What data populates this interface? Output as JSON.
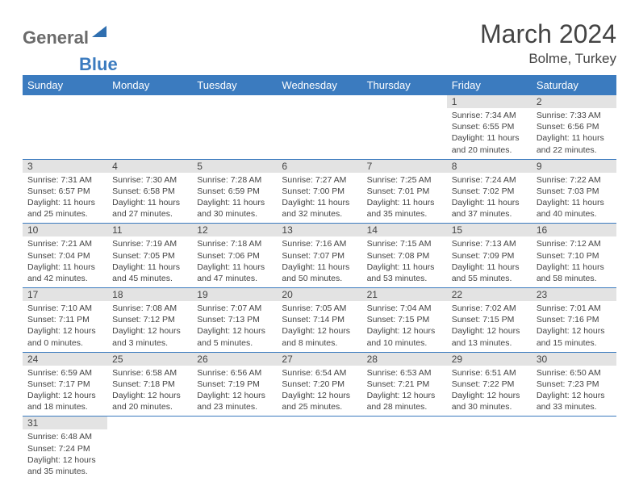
{
  "logo": {
    "text1": "General",
    "text2": "Blue"
  },
  "title": "March 2024",
  "location": "Bolme, Turkey",
  "colors": {
    "header_bg": "#3b7bbf",
    "header_fg": "#ffffff",
    "day_stripe": "#e3e3e3",
    "border": "#3b7bbf",
    "text": "#444444"
  },
  "weekdays": [
    "Sunday",
    "Monday",
    "Tuesday",
    "Wednesday",
    "Thursday",
    "Friday",
    "Saturday"
  ],
  "weeks": [
    [
      {
        "empty": true
      },
      {
        "empty": true
      },
      {
        "empty": true
      },
      {
        "empty": true
      },
      {
        "empty": true
      },
      {
        "day": "1",
        "l1": "Sunrise: 7:34 AM",
        "l2": "Sunset: 6:55 PM",
        "l3": "Daylight: 11 hours",
        "l4": "and 20 minutes."
      },
      {
        "day": "2",
        "l1": "Sunrise: 7:33 AM",
        "l2": "Sunset: 6:56 PM",
        "l3": "Daylight: 11 hours",
        "l4": "and 22 minutes."
      }
    ],
    [
      {
        "day": "3",
        "l1": "Sunrise: 7:31 AM",
        "l2": "Sunset: 6:57 PM",
        "l3": "Daylight: 11 hours",
        "l4": "and 25 minutes."
      },
      {
        "day": "4",
        "l1": "Sunrise: 7:30 AM",
        "l2": "Sunset: 6:58 PM",
        "l3": "Daylight: 11 hours",
        "l4": "and 27 minutes."
      },
      {
        "day": "5",
        "l1": "Sunrise: 7:28 AM",
        "l2": "Sunset: 6:59 PM",
        "l3": "Daylight: 11 hours",
        "l4": "and 30 minutes."
      },
      {
        "day": "6",
        "l1": "Sunrise: 7:27 AM",
        "l2": "Sunset: 7:00 PM",
        "l3": "Daylight: 11 hours",
        "l4": "and 32 minutes."
      },
      {
        "day": "7",
        "l1": "Sunrise: 7:25 AM",
        "l2": "Sunset: 7:01 PM",
        "l3": "Daylight: 11 hours",
        "l4": "and 35 minutes."
      },
      {
        "day": "8",
        "l1": "Sunrise: 7:24 AM",
        "l2": "Sunset: 7:02 PM",
        "l3": "Daylight: 11 hours",
        "l4": "and 37 minutes."
      },
      {
        "day": "9",
        "l1": "Sunrise: 7:22 AM",
        "l2": "Sunset: 7:03 PM",
        "l3": "Daylight: 11 hours",
        "l4": "and 40 minutes."
      }
    ],
    [
      {
        "day": "10",
        "l1": "Sunrise: 7:21 AM",
        "l2": "Sunset: 7:04 PM",
        "l3": "Daylight: 11 hours",
        "l4": "and 42 minutes."
      },
      {
        "day": "11",
        "l1": "Sunrise: 7:19 AM",
        "l2": "Sunset: 7:05 PM",
        "l3": "Daylight: 11 hours",
        "l4": "and 45 minutes."
      },
      {
        "day": "12",
        "l1": "Sunrise: 7:18 AM",
        "l2": "Sunset: 7:06 PM",
        "l3": "Daylight: 11 hours",
        "l4": "and 47 minutes."
      },
      {
        "day": "13",
        "l1": "Sunrise: 7:16 AM",
        "l2": "Sunset: 7:07 PM",
        "l3": "Daylight: 11 hours",
        "l4": "and 50 minutes."
      },
      {
        "day": "14",
        "l1": "Sunrise: 7:15 AM",
        "l2": "Sunset: 7:08 PM",
        "l3": "Daylight: 11 hours",
        "l4": "and 53 minutes."
      },
      {
        "day": "15",
        "l1": "Sunrise: 7:13 AM",
        "l2": "Sunset: 7:09 PM",
        "l3": "Daylight: 11 hours",
        "l4": "and 55 minutes."
      },
      {
        "day": "16",
        "l1": "Sunrise: 7:12 AM",
        "l2": "Sunset: 7:10 PM",
        "l3": "Daylight: 11 hours",
        "l4": "and 58 minutes."
      }
    ],
    [
      {
        "day": "17",
        "l1": "Sunrise: 7:10 AM",
        "l2": "Sunset: 7:11 PM",
        "l3": "Daylight: 12 hours",
        "l4": "and 0 minutes."
      },
      {
        "day": "18",
        "l1": "Sunrise: 7:08 AM",
        "l2": "Sunset: 7:12 PM",
        "l3": "Daylight: 12 hours",
        "l4": "and 3 minutes."
      },
      {
        "day": "19",
        "l1": "Sunrise: 7:07 AM",
        "l2": "Sunset: 7:13 PM",
        "l3": "Daylight: 12 hours",
        "l4": "and 5 minutes."
      },
      {
        "day": "20",
        "l1": "Sunrise: 7:05 AM",
        "l2": "Sunset: 7:14 PM",
        "l3": "Daylight: 12 hours",
        "l4": "and 8 minutes."
      },
      {
        "day": "21",
        "l1": "Sunrise: 7:04 AM",
        "l2": "Sunset: 7:15 PM",
        "l3": "Daylight: 12 hours",
        "l4": "and 10 minutes."
      },
      {
        "day": "22",
        "l1": "Sunrise: 7:02 AM",
        "l2": "Sunset: 7:15 PM",
        "l3": "Daylight: 12 hours",
        "l4": "and 13 minutes."
      },
      {
        "day": "23",
        "l1": "Sunrise: 7:01 AM",
        "l2": "Sunset: 7:16 PM",
        "l3": "Daylight: 12 hours",
        "l4": "and 15 minutes."
      }
    ],
    [
      {
        "day": "24",
        "l1": "Sunrise: 6:59 AM",
        "l2": "Sunset: 7:17 PM",
        "l3": "Daylight: 12 hours",
        "l4": "and 18 minutes."
      },
      {
        "day": "25",
        "l1": "Sunrise: 6:58 AM",
        "l2": "Sunset: 7:18 PM",
        "l3": "Daylight: 12 hours",
        "l4": "and 20 minutes."
      },
      {
        "day": "26",
        "l1": "Sunrise: 6:56 AM",
        "l2": "Sunset: 7:19 PM",
        "l3": "Daylight: 12 hours",
        "l4": "and 23 minutes."
      },
      {
        "day": "27",
        "l1": "Sunrise: 6:54 AM",
        "l2": "Sunset: 7:20 PM",
        "l3": "Daylight: 12 hours",
        "l4": "and 25 minutes."
      },
      {
        "day": "28",
        "l1": "Sunrise: 6:53 AM",
        "l2": "Sunset: 7:21 PM",
        "l3": "Daylight: 12 hours",
        "l4": "and 28 minutes."
      },
      {
        "day": "29",
        "l1": "Sunrise: 6:51 AM",
        "l2": "Sunset: 7:22 PM",
        "l3": "Daylight: 12 hours",
        "l4": "and 30 minutes."
      },
      {
        "day": "30",
        "l1": "Sunrise: 6:50 AM",
        "l2": "Sunset: 7:23 PM",
        "l3": "Daylight: 12 hours",
        "l4": "and 33 minutes."
      }
    ],
    [
      {
        "day": "31",
        "l1": "Sunrise: 6:48 AM",
        "l2": "Sunset: 7:24 PM",
        "l3": "Daylight: 12 hours",
        "l4": "and 35 minutes."
      },
      {
        "empty": true
      },
      {
        "empty": true
      },
      {
        "empty": true
      },
      {
        "empty": true
      },
      {
        "empty": true
      },
      {
        "empty": true
      }
    ]
  ]
}
